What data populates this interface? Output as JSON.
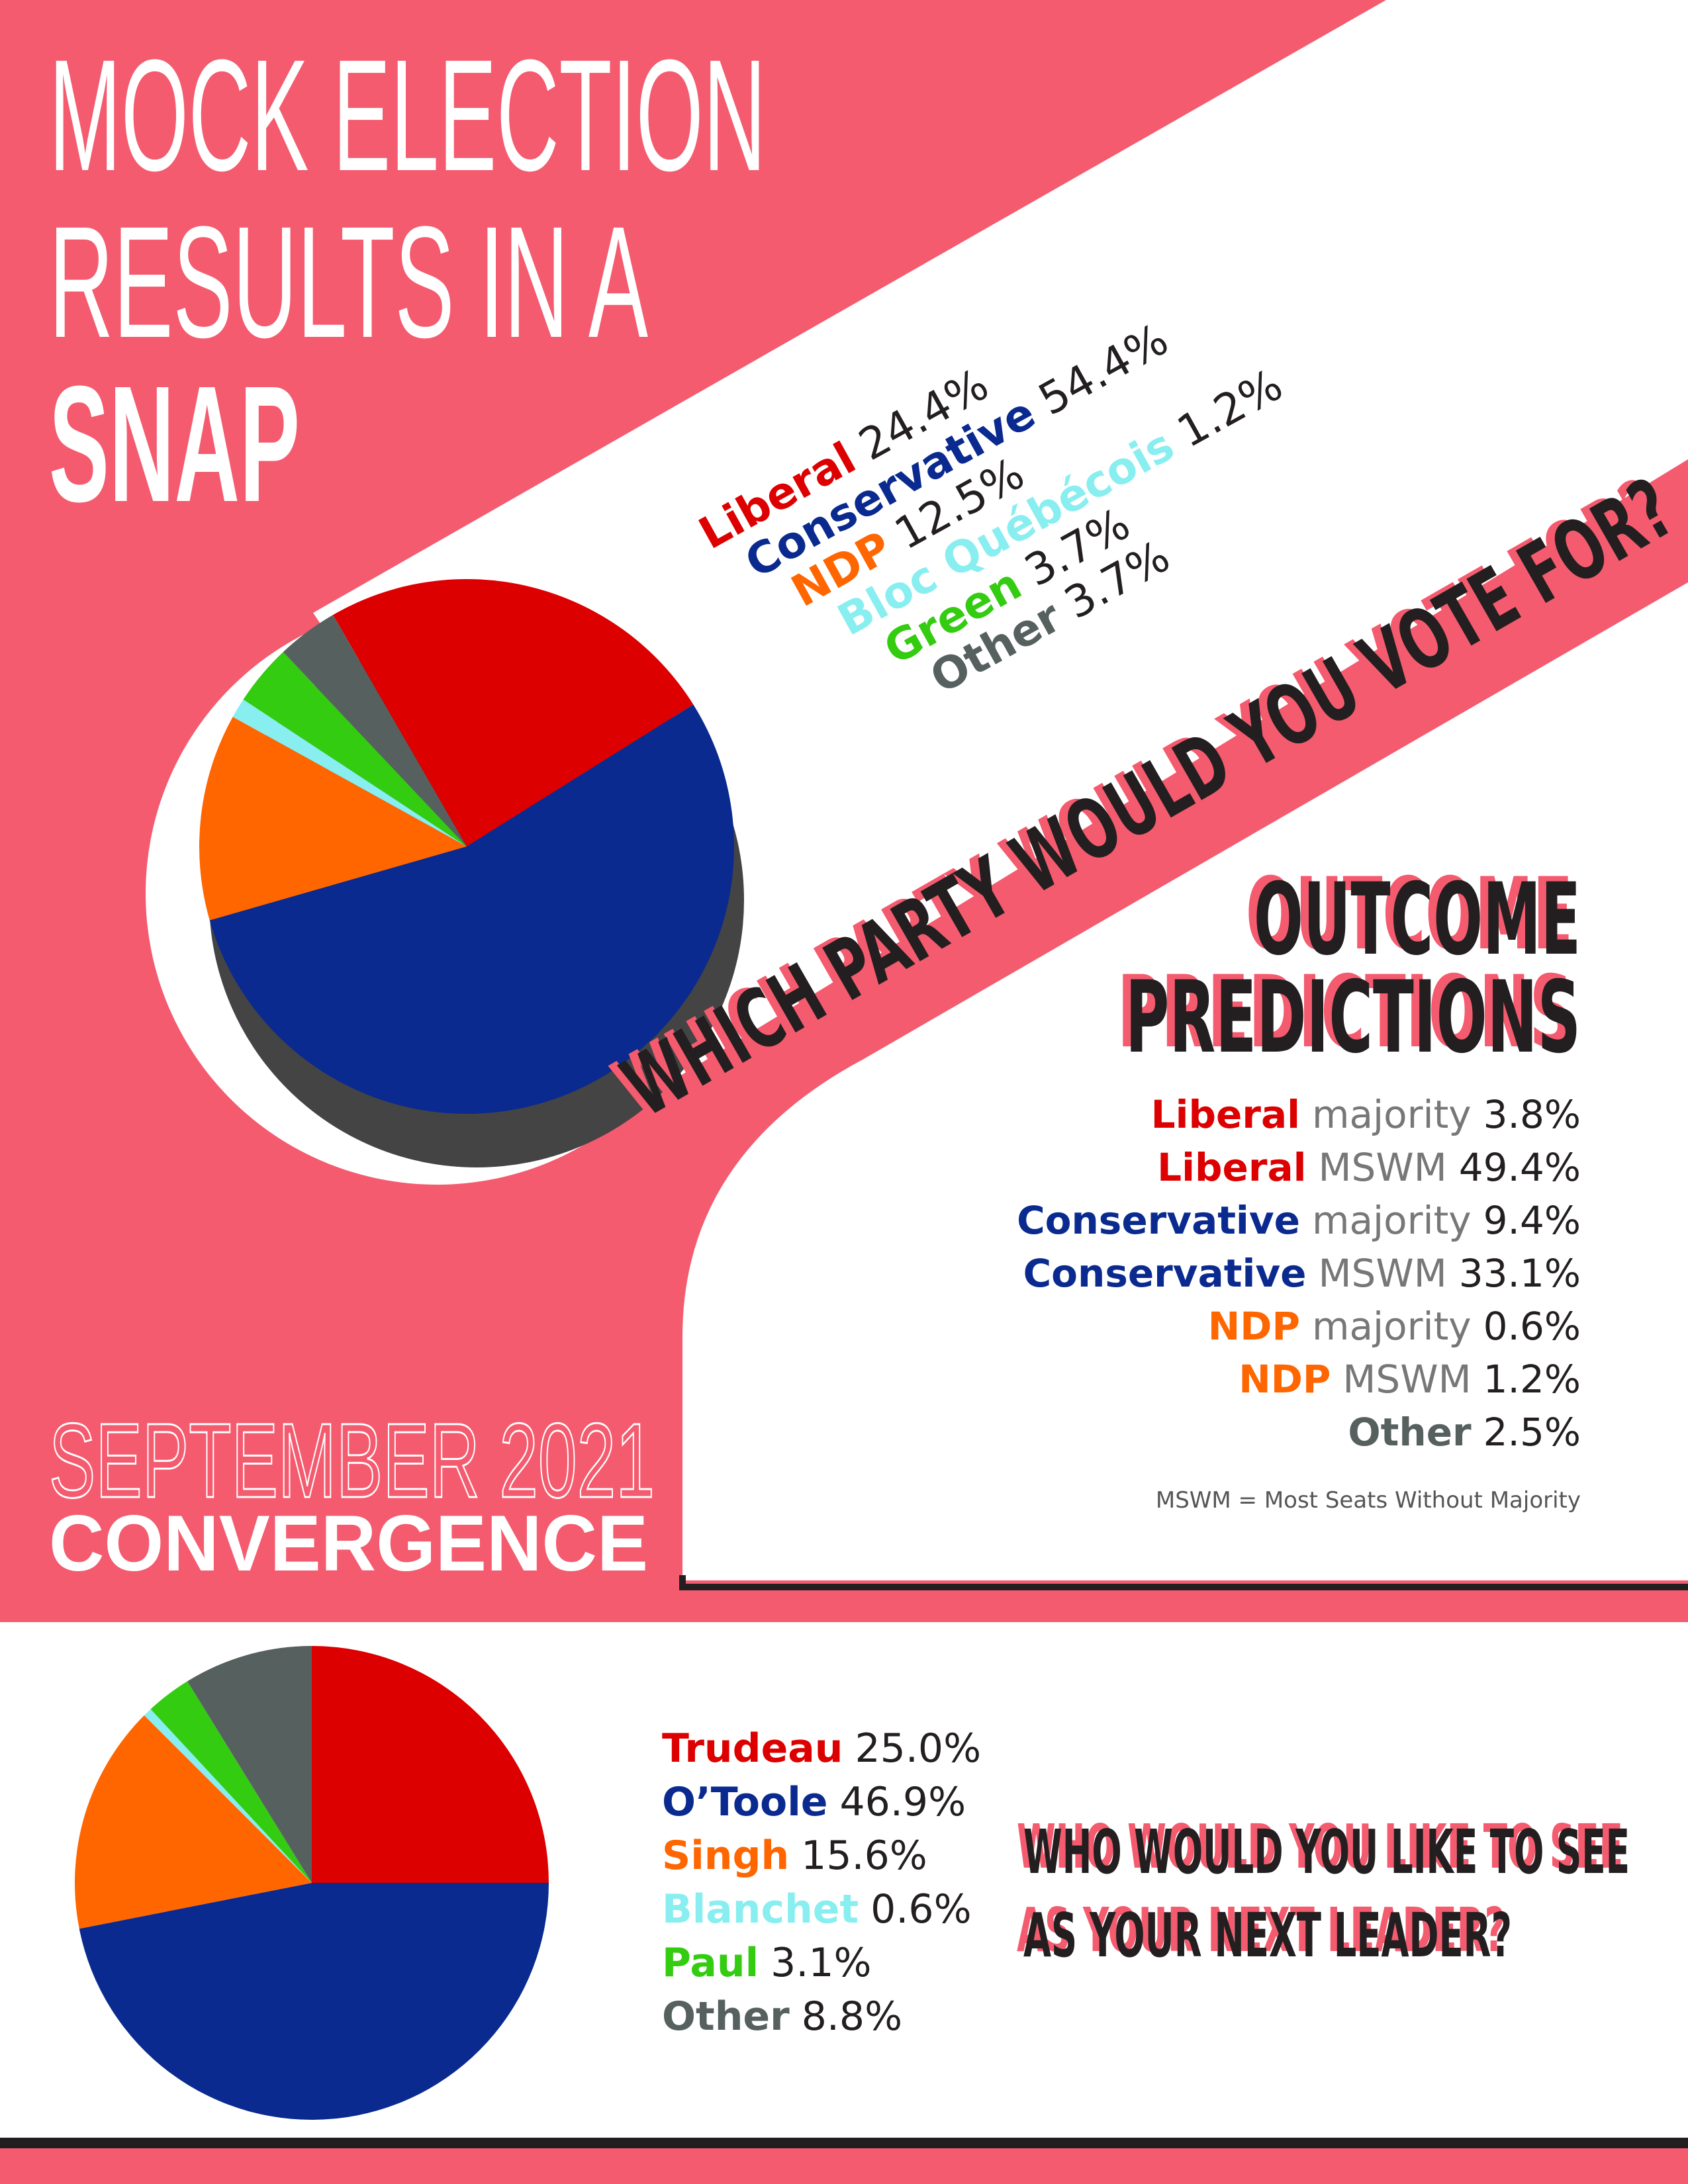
{
  "header": {
    "title_lines": [
      "MOCK ELECTION",
      "RESULTS IN A"
    ],
    "emphasis": "SNAP",
    "date": "SEPTEMBER 2021",
    "brand": "CONVERGENCE"
  },
  "chart_data": [
    {
      "type": "pie",
      "title": "WHICH PARTY WOULD YOU VOTE FOR?",
      "categories": [
        "Liberal",
        "Conservative",
        "NDP",
        "Bloc Québécois",
        "Green",
        "Other"
      ],
      "values": [
        24.4,
        54.4,
        12.5,
        1.2,
        3.7,
        3.7
      ],
      "value_labels": [
        "24.4%",
        "54.4%",
        "12.5%",
        "1.2%",
        "3.7%",
        "3.7%"
      ],
      "colors": [
        "#dd0000",
        "#0a2a8f",
        "#ff6600",
        "#88eef0",
        "#33cc11",
        "#56615f"
      ]
    },
    {
      "type": "pie",
      "title": [
        "WHO WOULD YOU LIKE TO SEE",
        "AS YOUR NEXT LEADER?"
      ],
      "categories": [
        "Trudeau",
        "O’Toole",
        "Singh",
        "Blanchet",
        "Paul",
        "Other"
      ],
      "values": [
        25.0,
        46.9,
        15.6,
        0.6,
        3.1,
        8.8
      ],
      "value_labels": [
        "25.0%",
        "46.9%",
        "15.6%",
        "0.6%",
        "3.1%",
        "8.8%"
      ],
      "colors": [
        "#dd0000",
        "#0a2a8f",
        "#ff6600",
        "#88eef0",
        "#33cc11",
        "#56615f"
      ]
    }
  ],
  "predictions": {
    "title": [
      "OUTCOME",
      "PREDICTIONS"
    ],
    "rows": [
      {
        "party": "Liberal",
        "outcome": "majority",
        "value": "3.8%",
        "color": "#dd0000"
      },
      {
        "party": "Liberal",
        "outcome": "MSWM",
        "value": "49.4%",
        "color": "#dd0000"
      },
      {
        "party": "Conservative",
        "outcome": "majority",
        "value": "9.4%",
        "color": "#0a2a8f"
      },
      {
        "party": "Conservative",
        "outcome": "MSWM",
        "value": "33.1%",
        "color": "#0a2a8f"
      },
      {
        "party": "NDP",
        "outcome": "majority",
        "value": "0.6%",
        "color": "#ff6600"
      },
      {
        "party": "NDP",
        "outcome": "MSWM",
        "value": "1.2%",
        "color": "#ff6600"
      },
      {
        "party": "Other",
        "value": "2.5%",
        "color": "#56615f"
      }
    ],
    "note": "MSWM = Most Seats Without Majority"
  }
}
